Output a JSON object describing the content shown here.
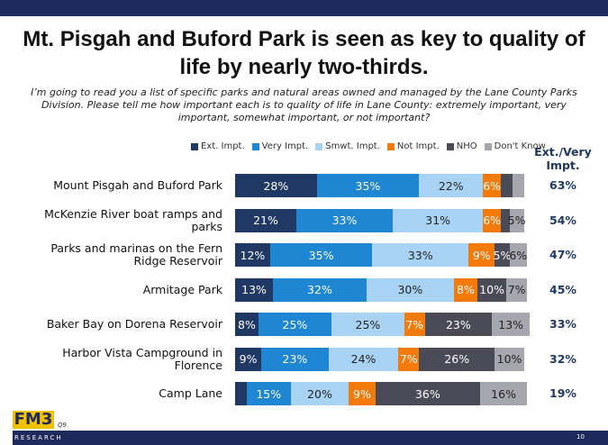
{
  "chart_data": {
    "type": "bar",
    "orientation": "horizontal",
    "stacked": true,
    "title": "Mt. Pisgah and Buford Park is seen as key to quality of life by nearly two-thirds.",
    "subtitle": "I’m going to read you a list of specific parks and natural areas owned and managed by the Lane County Parks Division. Please tell me how important each is to quality of life in Lane County: extremely important, very important, somewhat important, or not important?",
    "categories": [
      "Mount Pisgah and Buford Park",
      "McKenzie River boat ramps and parks",
      "Parks and marinas on the Fern Ridge Reservoir",
      "Armitage Park",
      "Baker Bay on Dorena Reservoir",
      "Harbor Vista Campground in Florence",
      "Camp Lane"
    ],
    "xlim": [
      0,
      100
    ],
    "series": [
      {
        "name": "Ext. Impt.",
        "color": "#1f3864",
        "values": [
          28,
          21,
          12,
          13,
          8,
          9,
          4
        ],
        "value_labels": [
          "28%",
          "21%",
          "12%",
          "13%",
          "8%",
          "9%",
          null
        ]
      },
      {
        "name": "Very Impt.",
        "color": "#1e86d2",
        "values": [
          35,
          33,
          35,
          32,
          25,
          23,
          15
        ],
        "value_labels": [
          "35%",
          "33%",
          "35%",
          "32%",
          "25%",
          "23%",
          "15%"
        ]
      },
      {
        "name": "Smwt. Impt.",
        "color": "#a9d3f5",
        "values": [
          22,
          31,
          33,
          30,
          25,
          24,
          20
        ],
        "value_labels": [
          "22%",
          "31%",
          "33%",
          "30%",
          "25%",
          "24%",
          "20%"
        ]
      },
      {
        "name": "Not Impt.",
        "color": "#f47a0c",
        "values": [
          6,
          6,
          9,
          8,
          7,
          7,
          9
        ],
        "value_labels": [
          "6%",
          "6%",
          "9%",
          "8%",
          "7%",
          "7%",
          "9%"
        ]
      },
      {
        "name": "NHO",
        "color": "#4b4b57",
        "values": [
          4,
          3,
          5,
          10,
          23,
          26,
          36
        ],
        "value_labels": [
          null,
          null,
          "5%",
          "10%",
          "23%",
          "26%",
          "36%"
        ]
      },
      {
        "name": "Don't Know",
        "color": "#a6a6ae",
        "values": [
          4,
          5,
          6,
          7,
          13,
          10,
          16
        ],
        "value_labels": [
          null,
          "5%",
          "6%",
          "7%",
          "13%",
          "10%",
          "16%"
        ]
      }
    ],
    "summary": {
      "title": "Ext./Very Impt.",
      "values": [
        63,
        54,
        47,
        45,
        33,
        32,
        19
      ],
      "value_labels": [
        "63%",
        "54%",
        "47%",
        "45%",
        "33%",
        "32%",
        "19%"
      ]
    },
    "legend": "top"
  },
  "footer": {
    "logo": "FM3",
    "logo_sub": "RESEARCH",
    "note": "Q9.",
    "page": "10"
  }
}
